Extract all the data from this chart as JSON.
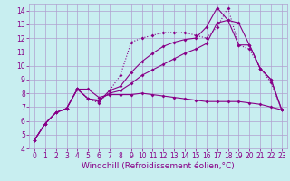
{
  "background_color": "#c8eef0",
  "grid_color": "#b0a0d0",
  "line_color": "#880088",
  "xlim": [
    -0.5,
    23.5
  ],
  "ylim": [
    4,
    14.5
  ],
  "xlabel": "Windchill (Refroidissement éolien,°C)",
  "xticks": [
    0,
    1,
    2,
    3,
    4,
    5,
    6,
    7,
    8,
    9,
    10,
    11,
    12,
    13,
    14,
    15,
    16,
    17,
    18,
    19,
    20,
    21,
    22,
    23
  ],
  "yticks": [
    4,
    5,
    6,
    7,
    8,
    9,
    10,
    11,
    12,
    13,
    14
  ],
  "tick_fontsize": 5.5,
  "label_fontsize": 6.5,
  "line1_x": [
    0,
    1,
    2,
    3,
    4,
    5,
    6,
    7,
    8,
    9,
    10,
    11,
    12,
    13,
    14,
    15,
    16,
    17,
    18,
    19,
    20,
    21,
    22,
    23
  ],
  "line1_y": [
    4.6,
    5.8,
    6.6,
    6.9,
    8.3,
    8.3,
    7.7,
    7.9,
    7.9,
    7.9,
    8.0,
    7.9,
    7.8,
    7.7,
    7.6,
    7.5,
    7.4,
    7.4,
    7.4,
    7.4,
    7.3,
    7.2,
    7.0,
    6.8
  ],
  "line2_x": [
    0,
    1,
    2,
    3,
    4,
    5,
    6,
    7,
    8,
    9,
    10,
    11,
    12,
    13,
    14,
    15,
    16,
    17,
    18,
    19,
    20,
    21,
    22,
    23
  ],
  "line2_y": [
    4.6,
    5.8,
    6.6,
    6.9,
    8.3,
    7.6,
    7.3,
    8.2,
    9.3,
    11.7,
    12.0,
    12.2,
    12.4,
    12.4,
    12.4,
    12.2,
    12.0,
    12.8,
    14.2,
    11.5,
    11.2,
    9.8,
    8.8,
    6.8
  ],
  "line3_x": [
    0,
    1,
    2,
    3,
    4,
    5,
    6,
    7,
    8,
    9,
    10,
    11,
    12,
    13,
    14,
    15,
    16,
    17,
    18,
    19,
    20,
    21,
    22,
    23
  ],
  "line3_y": [
    4.6,
    5.8,
    6.6,
    6.9,
    8.3,
    7.6,
    7.4,
    8.2,
    8.5,
    9.5,
    10.3,
    10.9,
    11.4,
    11.7,
    11.9,
    12.0,
    12.8,
    14.2,
    13.3,
    13.1,
    11.5,
    9.8,
    9.0,
    6.8
  ],
  "line4_x": [
    0,
    1,
    2,
    3,
    4,
    5,
    6,
    7,
    8,
    9,
    10,
    11,
    12,
    13,
    14,
    15,
    16,
    17,
    18,
    19,
    20,
    21,
    22,
    23
  ],
  "line4_y": [
    4.6,
    5.8,
    6.6,
    6.9,
    8.3,
    7.6,
    7.5,
    8.0,
    8.2,
    8.7,
    9.3,
    9.7,
    10.1,
    10.5,
    10.9,
    11.2,
    11.6,
    13.1,
    13.3,
    11.5,
    11.5,
    9.8,
    9.0,
    6.8
  ]
}
